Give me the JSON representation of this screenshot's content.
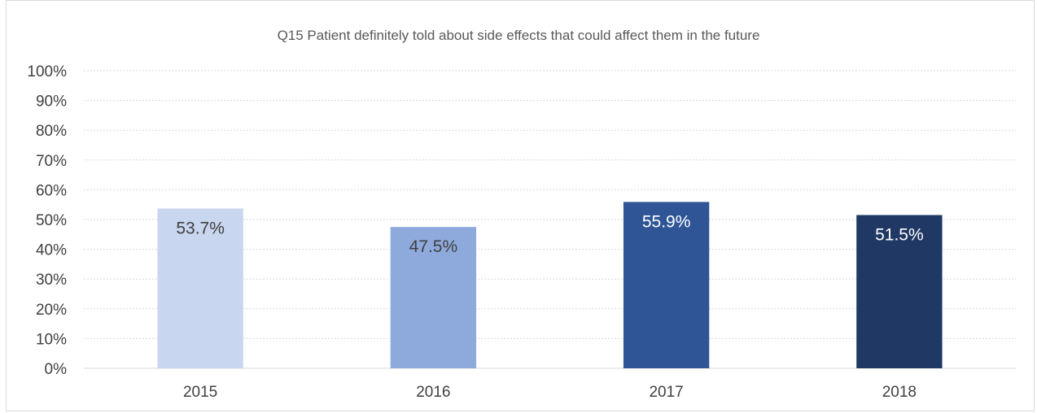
{
  "chart_data": {
    "type": "bar",
    "title": "Q15 Patient definitely told about side effects that could affect them in the future",
    "categories": [
      "2015",
      "2016",
      "2017",
      "2018"
    ],
    "values": [
      53.7,
      47.5,
      55.9,
      51.5
    ],
    "data_labels": [
      "53.7%",
      "47.5%",
      "55.9%",
      "51.5%"
    ],
    "bar_colors": [
      "#c9d6ef",
      "#8eaadc",
      "#2f5597",
      "#1f3864"
    ],
    "label_colors": [
      "#404040",
      "#404040",
      "#ffffff",
      "#ffffff"
    ],
    "ylim": [
      0,
      100
    ],
    "y_ticks": [
      0,
      10,
      20,
      30,
      40,
      50,
      60,
      70,
      80,
      90,
      100
    ],
    "y_tick_labels": [
      "0%",
      "10%",
      "20%",
      "30%",
      "40%",
      "50%",
      "60%",
      "70%",
      "80%",
      "90%",
      "100%"
    ],
    "gridlines": true,
    "grid_color": "#d9d9d9",
    "legend": "none"
  }
}
